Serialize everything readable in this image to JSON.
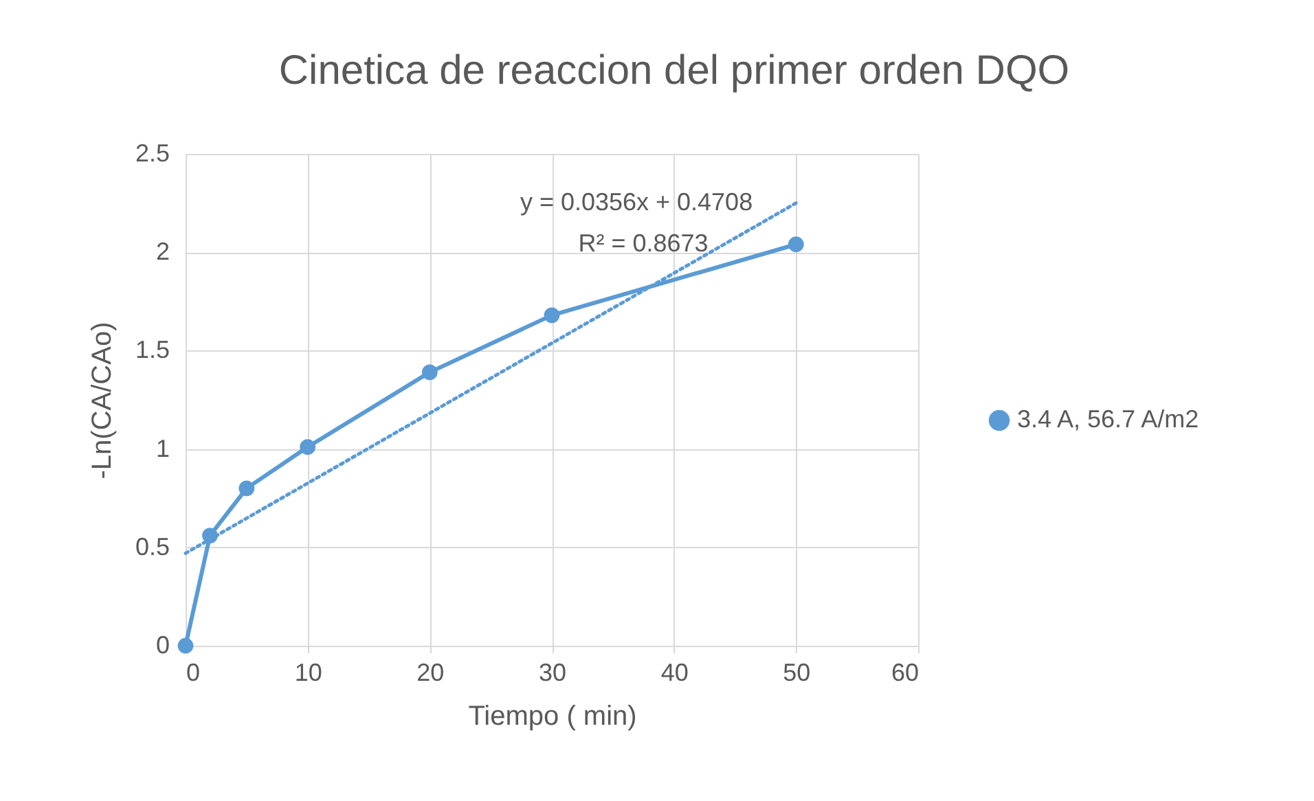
{
  "chart_data": {
    "type": "line",
    "title": "Cinetica de reaccion del primer orden DQO",
    "xlabel": "Tiempo ( min)",
    "ylabel": "-Ln(CA/CAo)",
    "x": [
      0,
      2,
      5,
      10,
      20,
      30,
      50
    ],
    "series": [
      {
        "name": "3.4 A, 56.7 A/m2",
        "color": "#5b9bd5",
        "values": [
          0,
          0.56,
          0.8,
          1.01,
          1.39,
          1.68,
          2.04
        ],
        "marker": "circle"
      },
      {
        "type": "line",
        "color": "#5b9bd5",
        "x": [
          0,
          50
        ],
        "values": [
          0.47,
          2.25
        ],
        "line_style": "dotted",
        "marker": "none"
      }
    ],
    "annotations": [
      "y = 0.0356x + 0.4708",
      "R² = 0.8673"
    ],
    "xlim": [
      0,
      60
    ],
    "xticks": [
      0,
      10,
      20,
      30,
      40,
      50,
      60
    ],
    "ylim": [
      0,
      2.5
    ],
    "yticks": [
      0,
      0.5,
      1,
      1.5,
      2,
      2.5
    ],
    "grid": true,
    "legend": "right"
  }
}
